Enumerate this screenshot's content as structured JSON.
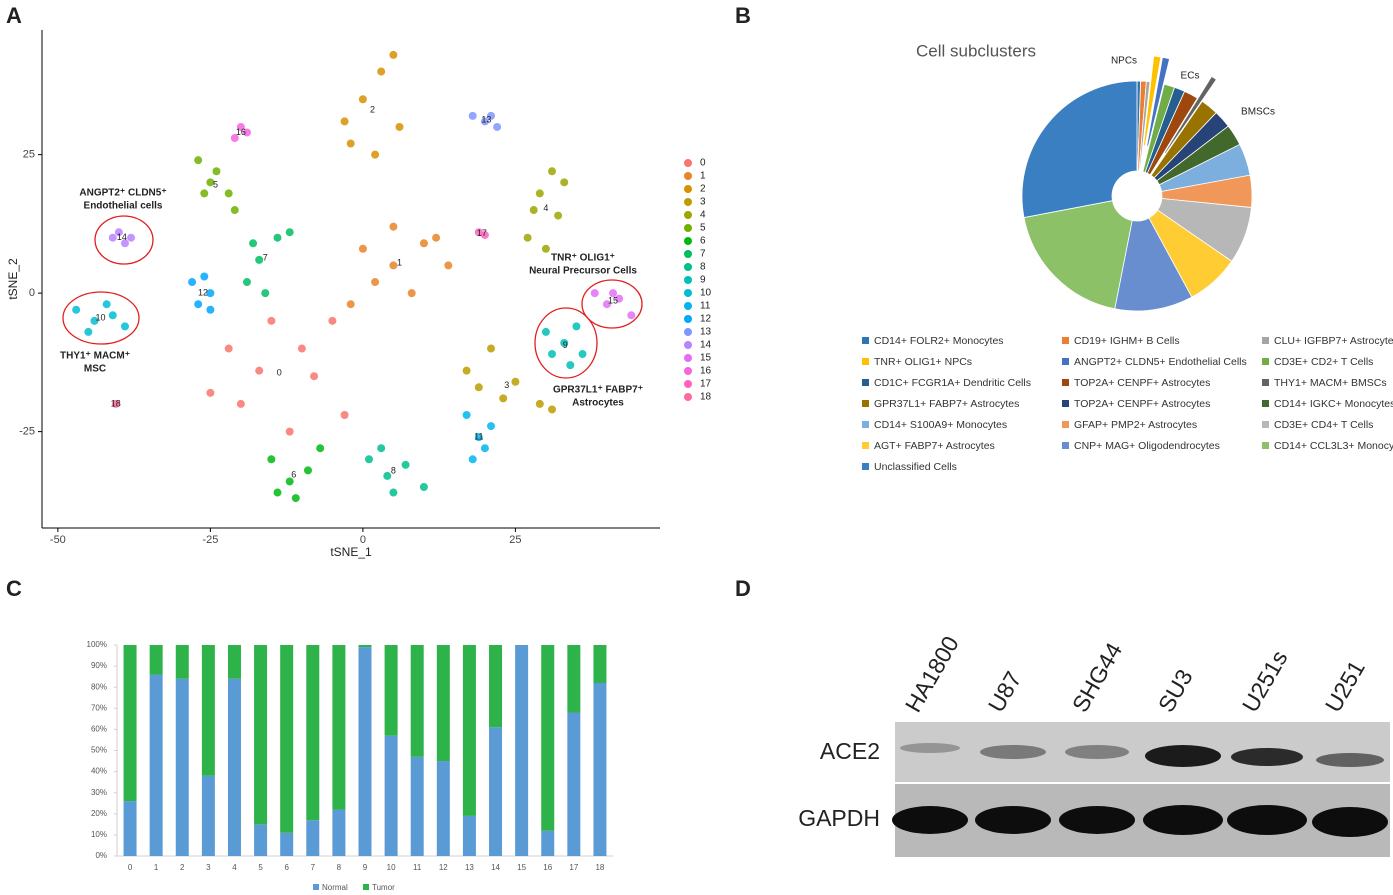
{
  "chart_data": [
    {
      "type": "scatter",
      "panel": "A",
      "xlabel": "tSNE_1",
      "ylabel": "tSNE_2",
      "xlim": [
        -52.6,
        48.7
      ],
      "ylim": [
        -42.4,
        47.5
      ],
      "xticks": [
        -50,
        -25,
        0,
        25
      ],
      "yticks": [
        -25,
        0,
        25
      ],
      "annotations": [
        "ANGPT2⁺ CLDN5⁺",
        "Endothelial cells",
        "THY1⁺ MACM⁺",
        "MSC",
        "TNR⁺ OLIG1⁺",
        "Neural Precursor Cells",
        "GPR37L1⁺ FABP7⁺",
        "Astrocytes"
      ],
      "series": [
        {
          "name": "0",
          "color": "#F8766D",
          "x": [
            -20,
            -15,
            -8,
            -3,
            -12,
            -22,
            -5,
            -10,
            -25,
            -17
          ],
          "y": [
            -20,
            -5,
            -15,
            -22,
            -25,
            -10,
            -5,
            -10,
            -18,
            -14
          ]
        },
        {
          "name": "1",
          "color": "#E98428",
          "x": [
            0,
            5,
            10,
            14,
            8,
            2,
            -2,
            12,
            5
          ],
          "y": [
            8,
            12,
            9,
            5,
            0,
            2,
            -2,
            10,
            5
          ]
        },
        {
          "name": "2",
          "color": "#D69100",
          "x": [
            -2,
            0,
            3,
            6,
            2,
            -3,
            5
          ],
          "y": [
            27,
            35,
            40,
            30,
            25,
            31,
            43
          ]
        },
        {
          "name": "3",
          "color": "#BC9D00",
          "x": [
            17,
            21,
            25,
            29,
            23,
            19,
            31
          ],
          "y": [
            -14,
            -10,
            -16,
            -20,
            -19,
            -17,
            -21
          ]
        },
        {
          "name": "4",
          "color": "#9CA700",
          "x": [
            27,
            29,
            32,
            33,
            30,
            28,
            31
          ],
          "y": [
            10,
            18,
            14,
            20,
            8,
            15,
            22
          ]
        },
        {
          "name": "5",
          "color": "#6FB000",
          "x": [
            -27,
            -25,
            -22,
            -24,
            -21,
            -26
          ],
          "y": [
            24,
            20,
            18,
            22,
            15,
            18
          ]
        },
        {
          "name": "6",
          "color": "#00B813",
          "x": [
            -15,
            -12,
            -9,
            -11,
            -7,
            -14
          ],
          "y": [
            -30,
            -34,
            -32,
            -37,
            -28,
            -36
          ]
        },
        {
          "name": "7",
          "color": "#00BD61",
          "x": [
            -19,
            -17,
            -14,
            -12,
            -16,
            -18
          ],
          "y": [
            2,
            6,
            10,
            11,
            0,
            9
          ]
        },
        {
          "name": "8",
          "color": "#00C08E",
          "x": [
            1,
            4,
            7,
            10,
            5,
            3
          ],
          "y": [
            -30,
            -33,
            -31,
            -35,
            -36,
            -28
          ]
        },
        {
          "name": "9",
          "color": "#00C0B4",
          "x": [
            30,
            33,
            36,
            34,
            31,
            35
          ],
          "y": [
            -7,
            -9,
            -11,
            -13,
            -11,
            -6
          ]
        },
        {
          "name": "10",
          "color": "#00BDD4",
          "x": [
            -47,
            -44,
            -41,
            -39,
            -45,
            -42
          ],
          "y": [
            -3,
            -5,
            -4,
            -6,
            -7,
            -2
          ]
        },
        {
          "name": "11",
          "color": "#00B5EE",
          "x": [
            17,
            19,
            21,
            18,
            20
          ],
          "y": [
            -22,
            -26,
            -24,
            -30,
            -28
          ]
        },
        {
          "name": "12",
          "color": "#00A7FF",
          "x": [
            -28,
            -26,
            -25,
            -27,
            -25
          ],
          "y": [
            2,
            3,
            0,
            -2,
            -3
          ]
        },
        {
          "name": "13",
          "color": "#7F96FF",
          "x": [
            18,
            20,
            22,
            21
          ],
          "y": [
            32,
            31,
            30,
            32
          ]
        },
        {
          "name": "14",
          "color": "#BC81FF",
          "x": [
            -41,
            -39,
            -40,
            -38
          ],
          "y": [
            10,
            9,
            11,
            10
          ]
        },
        {
          "name": "15",
          "color": "#E26EF7",
          "x": [
            38,
            40,
            42,
            44,
            41
          ],
          "y": [
            0,
            -2,
            -1,
            -4,
            0
          ]
        },
        {
          "name": "16",
          "color": "#F863DF",
          "x": [
            -20,
            -19,
            -21
          ],
          "y": [
            30,
            29,
            28
          ]
        },
        {
          "name": "17",
          "color": "#FF62BF",
          "x": [
            19,
            20
          ],
          "y": [
            11,
            10.5
          ]
        },
        {
          "name": "18",
          "color": "#FF6A9A",
          "x": [
            -40.5
          ],
          "y": [
            -20
          ]
        }
      ]
    },
    {
      "type": "pie",
      "panel": "B",
      "title": "Cell subclusters",
      "annotations": [
        "NPCs",
        "ECs",
        "BMSCs"
      ],
      "exploded": [
        3,
        4,
        8
      ],
      "categories": [
        "CD14+ FOLR2+ Monocytes",
        "CD19+ IGHM+ B Cells",
        "CLU+ IGFBP7+ Astrocytes",
        "TNR+ OLIG1+ NPCs",
        "ANGPT2+ CLDN5+ Endothelial Cells",
        "CD3E+ CD2+ T Cells",
        "CD1C+ FCGR1A+ Dendritic Cells",
        "TOP2A+ CENPF+ Astrocytes",
        "THY1+ MACM+ BMSCs",
        "GPR37L1+ FABP7+ Astrocytes",
        "TOP2A+ CENPF+ Astrocytes",
        "CD14+ IGKC+ Monocytes",
        "CD14+ S100A9+ Monocytes",
        "GFAP+ PMP2+ Astrocytes",
        "CD3E+ CD4+ T Cells",
        "AGT+ FABP7+ Astrocytes",
        "CNP+ MAG+ Oligodendrocytes",
        "CD14+ CCL3L3+ Monocytes",
        "Unclassified Cells"
      ],
      "values": [
        0.5,
        0.8,
        0.5,
        1,
        1,
        1.5,
        1.5,
        2,
        0.8,
        2.5,
        2.5,
        3,
        4.5,
        4.5,
        8,
        7.5,
        11,
        18.9,
        28
      ],
      "colors": [
        "#2E75B6",
        "#ED7D31",
        "#A5A5A5",
        "#FFC000",
        "#4472C4",
        "#70AD47",
        "#255E91",
        "#9E480E",
        "#636363",
        "#997300",
        "#264478",
        "#43682B",
        "#7CAFDD",
        "#F1975A",
        "#B7B7B7",
        "#FFCD33",
        "#698ED0",
        "#8CC168",
        "#3A7FC1"
      ]
    },
    {
      "type": "stacked-bar",
      "panel": "C",
      "categories": [
        "0",
        "1",
        "2",
        "3",
        "4",
        "5",
        "6",
        "7",
        "8",
        "9",
        "10",
        "11",
        "12",
        "13",
        "14",
        "15",
        "16",
        "17",
        "18"
      ],
      "ylim": [
        0,
        100
      ],
      "yticks": [
        {
          "value": 0,
          "label": "0%"
        },
        {
          "value": 10,
          "label": "10%"
        },
        {
          "value": 20,
          "label": "20%"
        },
        {
          "value": 30,
          "label": "30%"
        },
        {
          "value": 40,
          "label": "40%"
        },
        {
          "value": 50,
          "label": "50%"
        },
        {
          "value": 60,
          "label": "60%"
        },
        {
          "value": 70,
          "label": "70%"
        },
        {
          "value": 80,
          "label": "80%"
        },
        {
          "value": 90,
          "label": "90%"
        },
        {
          "value": 100,
          "label": "100%"
        }
      ],
      "series": [
        {
          "name": "Normal",
          "color": "#5B9BD5",
          "values": [
            26,
            86,
            84,
            38,
            84,
            15,
            11,
            17,
            22,
            99,
            57,
            47,
            45,
            19,
            61,
            100,
            12,
            68,
            82
          ]
        },
        {
          "name": "Tumor",
          "color": "#2DB34A",
          "values": [
            74,
            14,
            16,
            62,
            16,
            85,
            89,
            83,
            78,
            1,
            43,
            53,
            55,
            81,
            39,
            0,
            88,
            32,
            18
          ]
        }
      ]
    },
    {
      "type": "blot",
      "panel": "D",
      "lanes": [
        "HA1800",
        "U87",
        "SHG44",
        "SU3",
        "U251s",
        "U251"
      ],
      "rows": [
        "ACE2",
        "GAPDH"
      ]
    }
  ]
}
